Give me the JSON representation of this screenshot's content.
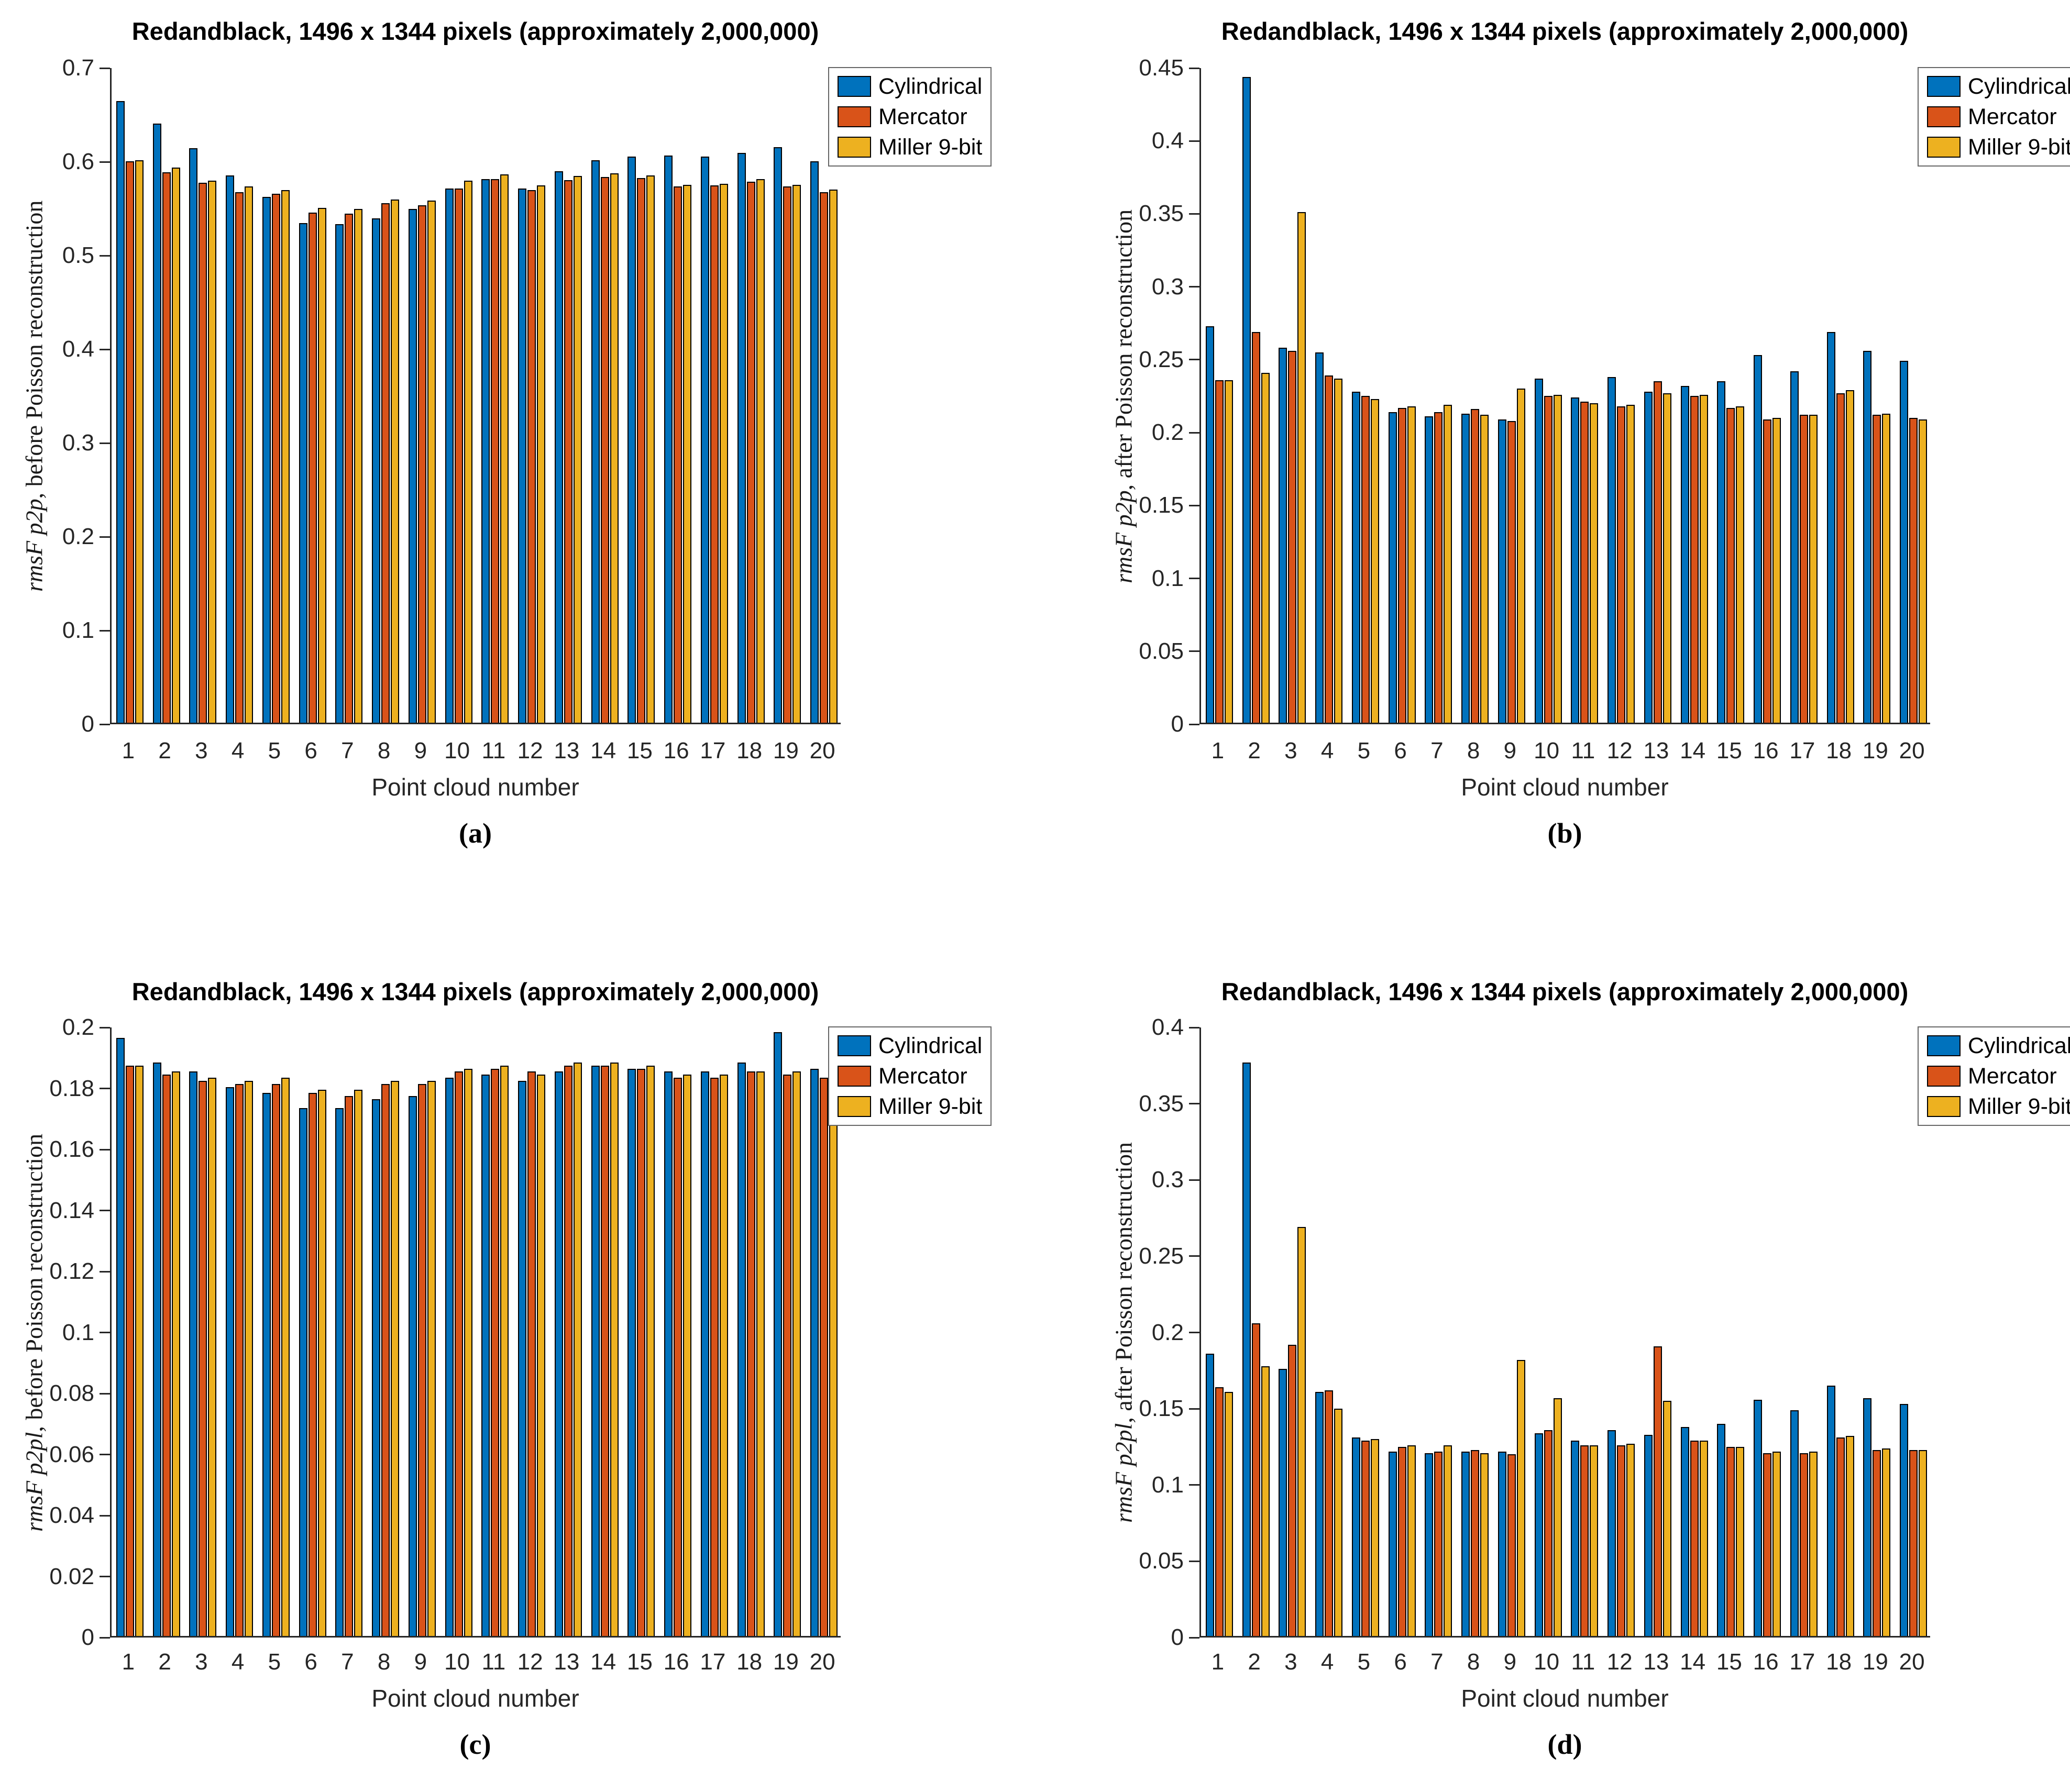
{
  "figure": {
    "background": "#ffffff",
    "captions": [
      "(a)",
      "(b)",
      "(c)",
      "(d)"
    ],
    "legend": {
      "position": "top-right-outside",
      "items": [
        {
          "label": "Cylindrical",
          "color": "#0072BD"
        },
        {
          "label": "Mercator",
          "color": "#D95319"
        },
        {
          "label": "Miller 9-bit",
          "color": "#EDB120"
        }
      ]
    }
  },
  "chart_data": [
    {
      "id": "a",
      "type": "bar",
      "title": "Redandblack, 1496 x 1344 pixels (approximately 2,000,000)",
      "xlabel": "Point cloud number",
      "ylabel_math": "rmsF p2p",
      "ylabel_rest": ", before Poisson reconstruction",
      "ylim": [
        0,
        0.7
      ],
      "grid": false,
      "ytick_values": [
        0,
        0.1,
        0.2,
        0.3,
        0.4,
        0.5,
        0.6,
        0.7
      ],
      "ytick_labels": [
        "0",
        "0.1",
        "0.2",
        "0.3",
        "0.4",
        "0.5",
        "0.6",
        "0.7"
      ],
      "categories": [
        "1",
        "2",
        "3",
        "4",
        "5",
        "6",
        "7",
        "8",
        "9",
        "10",
        "11",
        "12",
        "13",
        "14",
        "15",
        "16",
        "17",
        "18",
        "19",
        "20"
      ],
      "series": [
        {
          "name": "Cylindrical",
          "color": "#0072BD",
          "values": [
            0.663,
            0.639,
            0.613,
            0.584,
            0.561,
            0.533,
            0.532,
            0.538,
            0.548,
            0.57,
            0.58,
            0.57,
            0.588,
            0.6,
            0.604,
            0.605,
            0.604,
            0.608,
            0.614,
            0.599
          ]
        },
        {
          "name": "Mercator",
          "color": "#D95319",
          "values": [
            0.599,
            0.587,
            0.576,
            0.566,
            0.564,
            0.544,
            0.543,
            0.554,
            0.552,
            0.57,
            0.58,
            0.568,
            0.579,
            0.582,
            0.581,
            0.572,
            0.573,
            0.577,
            0.572,
            0.566
          ]
        },
        {
          "name": "Miller 9-bit",
          "color": "#EDB120",
          "values": [
            0.6,
            0.592,
            0.578,
            0.572,
            0.568,
            0.549,
            0.548,
            0.558,
            0.557,
            0.578,
            0.585,
            0.573,
            0.583,
            0.586,
            0.584,
            0.574,
            0.575,
            0.58,
            0.574,
            0.569
          ]
        }
      ]
    },
    {
      "id": "b",
      "type": "bar",
      "title": "Redandblack, 1496 x 1344 pixels (approximately 2,000,000)",
      "xlabel": "Point cloud number",
      "ylabel_math": "rmsF p2p",
      "ylabel_rest": ", after Poisson reconstruction",
      "ylim": [
        0,
        0.45
      ],
      "grid": false,
      "ytick_values": [
        0,
        0.05,
        0.1,
        0.15,
        0.2,
        0.25,
        0.3,
        0.35,
        0.4,
        0.45
      ],
      "ytick_labels": [
        "0",
        "0.05",
        "0.1",
        "0.15",
        "0.2",
        "0.25",
        "0.3",
        "0.35",
        "0.4",
        "0.45"
      ],
      "categories": [
        "1",
        "2",
        "3",
        "4",
        "5",
        "6",
        "7",
        "8",
        "9",
        "10",
        "11",
        "12",
        "13",
        "14",
        "15",
        "16",
        "17",
        "18",
        "19",
        "20"
      ],
      "series": [
        {
          "name": "Cylindrical",
          "color": "#0072BD",
          "values": [
            0.272,
            0.443,
            0.257,
            0.254,
            0.227,
            0.213,
            0.21,
            0.212,
            0.208,
            0.236,
            0.223,
            0.237,
            0.227,
            0.231,
            0.234,
            0.252,
            0.241,
            0.268,
            0.255,
            0.248
          ]
        },
        {
          "name": "Mercator",
          "color": "#D95319",
          "values": [
            0.235,
            0.268,
            0.255,
            0.238,
            0.224,
            0.216,
            0.213,
            0.215,
            0.207,
            0.224,
            0.22,
            0.217,
            0.234,
            0.224,
            0.216,
            0.208,
            0.211,
            0.226,
            0.211,
            0.209
          ]
        },
        {
          "name": "Miller 9-bit",
          "color": "#EDB120",
          "values": [
            0.235,
            0.24,
            0.35,
            0.236,
            0.222,
            0.217,
            0.218,
            0.211,
            0.229,
            0.225,
            0.219,
            0.218,
            0.226,
            0.225,
            0.217,
            0.209,
            0.211,
            0.228,
            0.212,
            0.208
          ]
        }
      ]
    },
    {
      "id": "c",
      "type": "bar",
      "title": "Redandblack, 1496 x 1344 pixels (approximately 2,000,000)",
      "xlabel": "Point cloud number",
      "ylabel_math": "rmsF p2pl",
      "ylabel_rest": ", before Poisson reconstruction",
      "ylim": [
        0,
        0.2
      ],
      "grid": false,
      "ytick_values": [
        0,
        0.02,
        0.04,
        0.06,
        0.08,
        0.1,
        0.12,
        0.14,
        0.16,
        0.18,
        0.2
      ],
      "ytick_labels": [
        "0",
        "0.02",
        "0.04",
        "0.06",
        "0.08",
        "0.1",
        "0.12",
        "0.14",
        "0.16",
        "0.18",
        "0.2"
      ],
      "categories": [
        "1",
        "2",
        "3",
        "4",
        "5",
        "6",
        "7",
        "8",
        "9",
        "10",
        "11",
        "12",
        "13",
        "14",
        "15",
        "16",
        "17",
        "18",
        "19",
        "20"
      ],
      "series": [
        {
          "name": "Cylindrical",
          "color": "#0072BD",
          "values": [
            0.196,
            0.188,
            0.185,
            0.18,
            0.178,
            0.173,
            0.173,
            0.176,
            0.177,
            0.183,
            0.184,
            0.182,
            0.185,
            0.187,
            0.186,
            0.185,
            0.185,
            0.188,
            0.198,
            0.186
          ]
        },
        {
          "name": "Mercator",
          "color": "#D95319",
          "values": [
            0.187,
            0.184,
            0.182,
            0.181,
            0.181,
            0.178,
            0.177,
            0.181,
            0.181,
            0.185,
            0.186,
            0.185,
            0.187,
            0.187,
            0.186,
            0.183,
            0.183,
            0.185,
            0.184,
            0.183
          ]
        },
        {
          "name": "Miller 9-bit",
          "color": "#EDB120",
          "values": [
            0.187,
            0.185,
            0.183,
            0.182,
            0.183,
            0.179,
            0.179,
            0.182,
            0.182,
            0.186,
            0.187,
            0.184,
            0.188,
            0.188,
            0.187,
            0.184,
            0.184,
            0.185,
            0.185,
            0.183
          ]
        }
      ]
    },
    {
      "id": "d",
      "type": "bar",
      "title": "Redandblack, 1496 x 1344 pixels (approximately 2,000,000)",
      "xlabel": "Point cloud number",
      "ylabel_math": "rmsF p2pl",
      "ylabel_rest": ", after Poisson reconstruction",
      "ylim": [
        0,
        0.4
      ],
      "grid": false,
      "ytick_values": [
        0,
        0.05,
        0.1,
        0.15,
        0.2,
        0.25,
        0.3,
        0.35,
        0.4
      ],
      "ytick_labels": [
        "0",
        "0.05",
        "0.1",
        "0.15",
        "0.2",
        "0.25",
        "0.3",
        "0.35",
        "0.4"
      ],
      "categories": [
        "1",
        "2",
        "3",
        "4",
        "5",
        "6",
        "7",
        "8",
        "9",
        "10",
        "11",
        "12",
        "13",
        "14",
        "15",
        "16",
        "17",
        "18",
        "19",
        "20"
      ],
      "series": [
        {
          "name": "Cylindrical",
          "color": "#0072BD",
          "values": [
            0.185,
            0.376,
            0.175,
            0.16,
            0.13,
            0.121,
            0.12,
            0.121,
            0.121,
            0.133,
            0.128,
            0.135,
            0.132,
            0.137,
            0.139,
            0.155,
            0.148,
            0.164,
            0.156,
            0.152
          ]
        },
        {
          "name": "Mercator",
          "color": "#D95319",
          "values": [
            0.163,
            0.205,
            0.191,
            0.161,
            0.128,
            0.124,
            0.121,
            0.122,
            0.119,
            0.135,
            0.125,
            0.125,
            0.19,
            0.128,
            0.124,
            0.12,
            0.12,
            0.13,
            0.122,
            0.122
          ]
        },
        {
          "name": "Miller 9-bit",
          "color": "#EDB120",
          "values": [
            0.16,
            0.177,
            0.268,
            0.149,
            0.129,
            0.125,
            0.125,
            0.12,
            0.181,
            0.156,
            0.125,
            0.126,
            0.154,
            0.128,
            0.124,
            0.121,
            0.121,
            0.131,
            0.123,
            0.122
          ]
        }
      ]
    }
  ]
}
